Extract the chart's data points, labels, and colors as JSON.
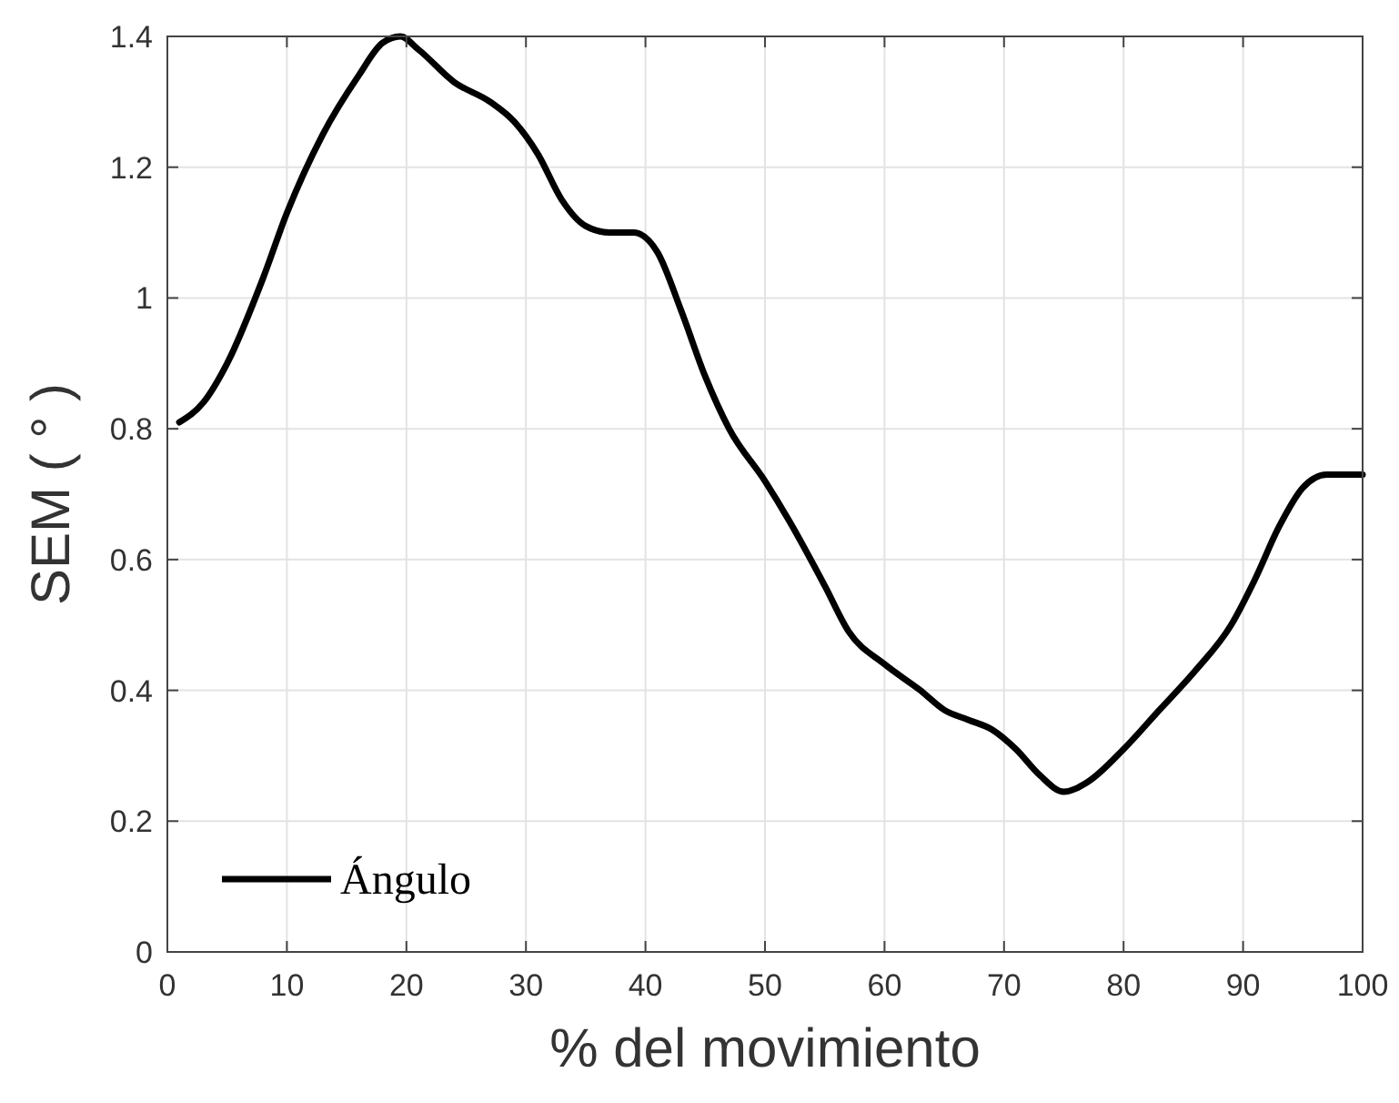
{
  "chart_data": {
    "type": "line",
    "xlabel": "% del movimiento",
    "ylabel": "SEM ( ° )",
    "xlim": [
      0,
      100
    ],
    "xticks": [
      0,
      10,
      20,
      30,
      40,
      50,
      60,
      70,
      80,
      90,
      100
    ],
    "ylim": [
      0,
      1.4
    ],
    "yticks": [
      0,
      0.2,
      0.4,
      0.6,
      0.8,
      1,
      1.2,
      1.4
    ],
    "grid": true,
    "legend": "bottom left",
    "line_style": "solid",
    "marker": "none",
    "series": [
      {
        "name": "Ángulo",
        "color": "#000000",
        "x": [
          1,
          3,
          5,
          8,
          10,
          13,
          16,
          18,
          19.5,
          21,
          24,
          27,
          29,
          31,
          33,
          35,
          37,
          39,
          41,
          43,
          45,
          47,
          50,
          52,
          55,
          57,
          60,
          63,
          65,
          67,
          69,
          71,
          73,
          75,
          77,
          80,
          83,
          86,
          89,
          91,
          93,
          95,
          97,
          100
        ],
        "values": [
          0.81,
          0.84,
          0.9,
          1.03,
          1.13,
          1.25,
          1.34,
          1.39,
          1.4,
          1.38,
          1.33,
          1.3,
          1.27,
          1.22,
          1.15,
          1.11,
          1.1,
          1.1,
          1.07,
          0.98,
          0.88,
          0.8,
          0.72,
          0.66,
          0.56,
          0.49,
          0.44,
          0.4,
          0.37,
          0.355,
          0.34,
          0.31,
          0.27,
          0.245,
          0.26,
          0.31,
          0.37,
          0.43,
          0.5,
          0.57,
          0.65,
          0.71,
          0.73,
          0.73
        ]
      }
    ]
  }
}
